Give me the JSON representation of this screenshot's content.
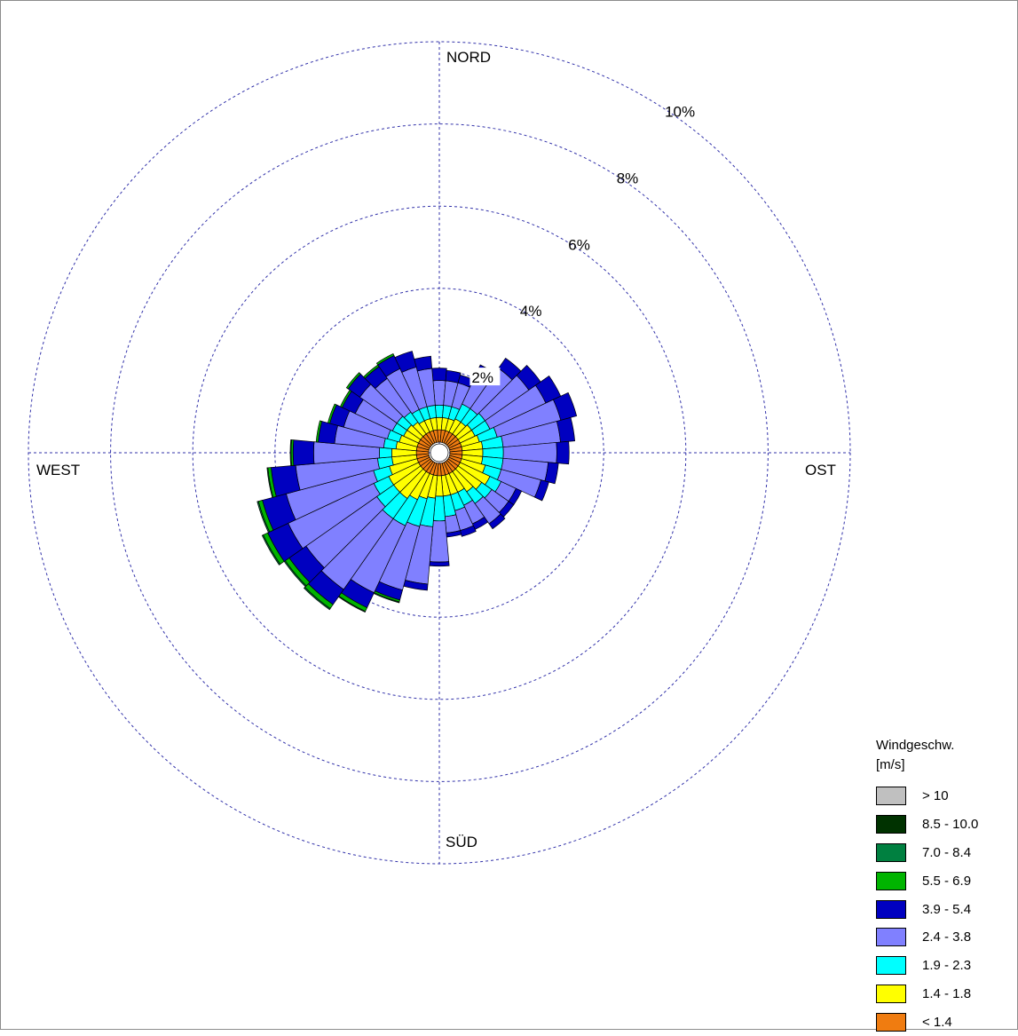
{
  "chart_data": {
    "type": "polar-bar-stacked",
    "title": "",
    "direction_labels": {
      "north": "NORD",
      "east": "OST",
      "south": "SÜD",
      "west": "WEST"
    },
    "rings": [
      {
        "value": 2,
        "label": "2%"
      },
      {
        "value": 4,
        "label": "4%"
      },
      {
        "value": 6,
        "label": "6%"
      },
      {
        "value": 8,
        "label": "8%"
      },
      {
        "value": 10,
        "label": "10%"
      }
    ],
    "rlim": [
      0,
      10
    ],
    "sector_width_deg": 10,
    "directions_deg": [
      0,
      10,
      20,
      30,
      40,
      50,
      60,
      70,
      80,
      90,
      100,
      110,
      120,
      130,
      140,
      150,
      160,
      170,
      180,
      190,
      200,
      210,
      220,
      230,
      240,
      250,
      260,
      270,
      280,
      290,
      300,
      310,
      320,
      330,
      340,
      350
    ],
    "legend": {
      "title_line1": "Windgeschw.",
      "title_line2": "[m/s]",
      "placement": "bottom-right"
    },
    "series": [
      {
        "name": "< 1.4",
        "color": "#f07c10",
        "values": [
          0.3,
          0.3,
          0.3,
          0.3,
          0.3,
          0.3,
          0.3,
          0.3,
          0.3,
          0.3,
          0.3,
          0.3,
          0.3,
          0.3,
          0.3,
          0.3,
          0.3,
          0.3,
          0.3,
          0.3,
          0.3,
          0.3,
          0.3,
          0.3,
          0.3,
          0.3,
          0.3,
          0.3,
          0.3,
          0.3,
          0.3,
          0.3,
          0.3,
          0.3,
          0.3,
          0.3
        ]
      },
      {
        "name": "1.4 - 1.8",
        "color": "#ffff00",
        "values": [
          0.3,
          0.3,
          0.3,
          0.35,
          0.35,
          0.4,
          0.4,
          0.45,
          0.5,
          0.5,
          0.5,
          0.6,
          0.8,
          0.7,
          0.6,
          0.5,
          0.5,
          0.5,
          0.5,
          0.55,
          0.6,
          0.7,
          0.8,
          0.8,
          0.8,
          0.7,
          0.6,
          0.6,
          0.5,
          0.45,
          0.4,
          0.4,
          0.35,
          0.3,
          0.3,
          0.3
        ]
      },
      {
        "name": "1.9 - 2.3",
        "color": "#00ffff",
        "values": [
          0.3,
          0.3,
          0.3,
          0.4,
          0.4,
          0.4,
          0.4,
          0.45,
          0.5,
          0.5,
          0.5,
          0.4,
          0.3,
          0.3,
          0.35,
          0.35,
          0.4,
          0.5,
          0.6,
          0.7,
          0.7,
          0.7,
          0.6,
          0.5,
          0.4,
          0.4,
          0.35,
          0.3,
          0.3,
          0.3,
          0.3,
          0.3,
          0.3,
          0.3,
          0.3,
          0.3
        ]
      },
      {
        "name": "2.4 - 3.8",
        "color": "#8080ff",
        "values": [
          0.6,
          0.6,
          0.6,
          0.8,
          1.2,
          1.3,
          1.5,
          1.6,
          1.4,
          1.3,
          1.1,
          1.0,
          0.4,
          0.5,
          0.6,
          0.5,
          0.5,
          0.4,
          1.0,
          1.4,
          1.6,
          1.8,
          2.1,
          2.1,
          2.3,
          2.2,
          2.0,
          1.6,
          1.2,
          1.1,
          1.0,
          1.1,
          1.0,
          1.1,
          1.0,
          0.9
        ]
      },
      {
        "name": "3.9 - 5.4",
        "color": "#0000c0",
        "values": [
          0.3,
          0.25,
          0.2,
          0.25,
          0.3,
          0.35,
          0.4,
          0.4,
          0.35,
          0.3,
          0.25,
          0.2,
          0.15,
          0.15,
          0.15,
          0.15,
          0.15,
          0.1,
          0.1,
          0.15,
          0.25,
          0.4,
          0.45,
          0.5,
          0.55,
          0.6,
          0.6,
          0.5,
          0.4,
          0.35,
          0.35,
          0.35,
          0.35,
          0.35,
          0.4,
          0.3
        ]
      },
      {
        "name": "5.5 - 6.9",
        "color": "#00b400",
        "values": [
          0,
          0,
          0,
          0,
          0,
          0,
          0,
          0,
          0,
          0,
          0,
          0,
          0,
          0,
          0,
          0,
          0,
          0,
          0,
          0,
          0.05,
          0.1,
          0.12,
          0.12,
          0.12,
          0.1,
          0.08,
          0.05,
          0.05,
          0.05,
          0.05,
          0.05,
          0.05,
          0.05,
          0,
          0
        ]
      },
      {
        "name": "7.0 - 8.4",
        "color": "#008040",
        "values": [
          0,
          0,
          0,
          0,
          0,
          0,
          0,
          0,
          0,
          0,
          0,
          0,
          0,
          0,
          0,
          0,
          0,
          0,
          0,
          0,
          0.02,
          0.02,
          0.03,
          0.03,
          0.03,
          0.03,
          0.02,
          0.02,
          0,
          0,
          0,
          0,
          0,
          0,
          0,
          0
        ]
      },
      {
        "name": "8.5 - 10.0",
        "color": "#003200",
        "values": [
          0,
          0,
          0,
          0,
          0,
          0,
          0,
          0,
          0,
          0,
          0,
          0,
          0,
          0,
          0,
          0,
          0,
          0,
          0,
          0,
          0,
          0,
          0,
          0,
          0,
          0,
          0,
          0,
          0,
          0,
          0,
          0,
          0,
          0,
          0,
          0
        ]
      },
      {
        "name": "> 10",
        "color": "#c0c0c0",
        "values": [
          0,
          0,
          0,
          0,
          0,
          0,
          0,
          0,
          0,
          0,
          0,
          0,
          0,
          0,
          0,
          0,
          0,
          0,
          0,
          0,
          0,
          0,
          0,
          0,
          0,
          0,
          0,
          0,
          0,
          0,
          0,
          0,
          0,
          0,
          0,
          0
        ]
      }
    ]
  }
}
